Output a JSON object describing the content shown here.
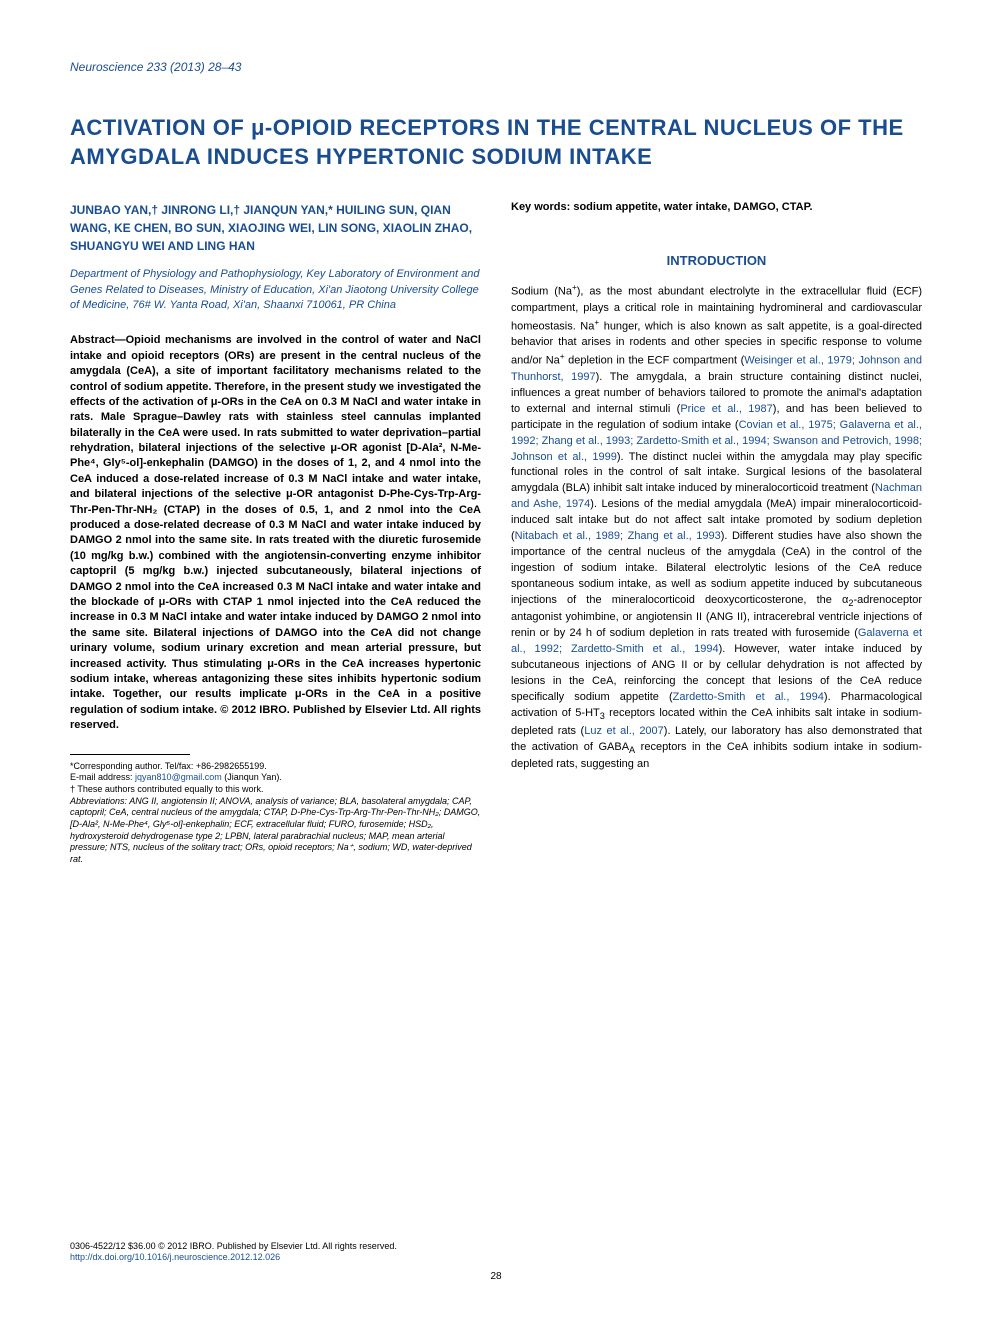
{
  "journal": "Neuroscience 233 (2013) 28–43",
  "title": "ACTIVATION OF μ-OPIOID RECEPTORS IN THE CENTRAL NUCLEUS OF THE AMYGDALA INDUCES HYPERTONIC SODIUM INTAKE",
  "authors": "JUNBAO YAN,† JINRONG LI,† JIANQUN YAN,* HUILING SUN, QIAN WANG, KE CHEN, BO SUN, XIAOJING WEI, LIN SONG, XIAOLIN ZHAO, SHUANGYU WEI AND LING HAN",
  "affiliation": "Department of Physiology and Pathophysiology, Key Laboratory of Environment and Genes Related to Diseases, Ministry of Education, Xi'an Jiaotong University College of Medicine, 76# W. Yanta Road, Xi'an, Shaanxi 710061, PR China",
  "abstract": "Abstract—Opioid mechanisms are involved in the control of water and NaCl intake and opioid receptors (ORs) are present in the central nucleus of the amygdala (CeA), a site of important facilitatory mechanisms related to the control of sodium appetite. Therefore, in the present study we investigated the effects of the activation of μ-ORs in the CeA on 0.3 M NaCl and water intake in rats. Male Sprague–Dawley rats with stainless steel cannulas implanted bilaterally in the CeA were used. In rats submitted to water deprivation–partial rehydration, bilateral injections of the selective μ-OR agonist [D-Ala², N-Me-Phe⁴, Gly⁵-ol]-enkephalin (DAMGO) in the doses of 1, 2, and 4 nmol into the CeA induced a dose-related increase of 0.3 M NaCl intake and water intake, and bilateral injections of the selective μ-OR antagonist D-Phe-Cys-Trp-Arg-Thr-Pen-Thr-NH₂ (CTAP) in the doses of 0.5, 1, and 2 nmol into the CeA produced a dose-related decrease of 0.3 M NaCl and water intake induced by DAMGO 2 nmol into the same site. In rats treated with the diuretic furosemide (10 mg/kg b.w.) combined with the angiotensin-converting enzyme inhibitor captopril (5 mg/kg b.w.) injected subcutaneously, bilateral injections of DAMGO 2 nmol into the CeA increased 0.3 M NaCl intake and water intake and the blockade of μ-ORs with CTAP 1 nmol injected into the CeA reduced the increase in 0.3 M NaCl intake and water intake induced by DAMGO 2 nmol into the same site. Bilateral injections of DAMGO into the CeA did not change urinary volume, sodium urinary excretion and mean arterial pressure, but increased activity. Thus stimulating μ-ORs in the CeA increases hypertonic sodium intake, whereas antagonizing these sites inhibits hypertonic sodium intake. Together, our results implicate μ-ORs in the CeA in a positive regulation of sodium intake. © 2012 IBRO. Published by Elsevier Ltd. All rights reserved.",
  "keywords": "Key words: sodium appetite, water intake, DAMGO, CTAP.",
  "intro_heading": "INTRODUCTION",
  "footnotes": {
    "corresponding": "*Corresponding author. Tel/fax: +86-2982655199.",
    "email_label": "E-mail address: ",
    "email": "jqyan810@gmail.com",
    "email_suffix": " (Jianqun Yan).",
    "contrib": "† These authors contributed equally to this work.",
    "abbrev": "Abbreviations: ANG II, angiotensin II; ANOVA, analysis of variance; BLA, basolateral amygdala; CAP, captopril; CeA, central nucleus of the amygdala; CTAP, D-Phe-Cys-Trp-Arg-Thr-Pen-Thr-NH₂; DAMGO, [D-Ala², N-Me-Phe⁴, Gly⁵-ol]-enkephalin; ECF, extracellular fluid; FURO, furosemide; HSD₂, hydroxysteroid dehydrogenase type 2; LPBN, lateral parabrachial nucleus; MAP, mean arterial pressure; NTS, nucleus of the solitary tract; ORs, opioid receptors; Na⁺, sodium; WD, water-deprived rat."
  },
  "footer": {
    "copyright": "0306-4522/12 $36.00 © 2012 IBRO. Published by Elsevier Ltd. All rights reserved.",
    "doi": "http://dx.doi.org/10.1016/j.neuroscience.2012.12.026",
    "page": "28"
  },
  "colors": {
    "link": "#1a4d8f",
    "text": "#000000",
    "bg": "#ffffff"
  }
}
